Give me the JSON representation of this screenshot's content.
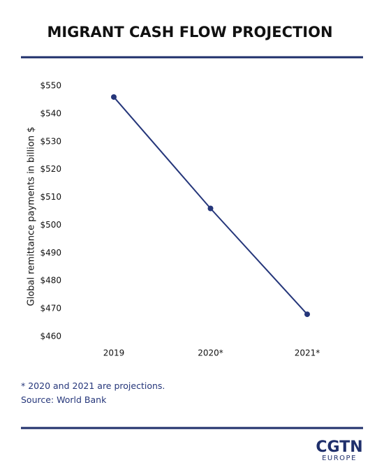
{
  "chart_data": {
    "type": "line",
    "title": "MIGRANT CASH FLOW PROJECTION",
    "y_label": "Global remittance payments in billion $",
    "categories": [
      "2019",
      "2020*",
      "2021*"
    ],
    "series": [
      {
        "name": "Global remittance payments",
        "color": "#25367a",
        "values": [
          546,
          506,
          468
        ]
      }
    ],
    "ylim": [
      460,
      550
    ],
    "yticks": [
      {
        "value": 460,
        "label": "$460"
      },
      {
        "value": 470,
        "label": "$470"
      },
      {
        "value": 480,
        "label": "$480"
      },
      {
        "value": 490,
        "label": "$490"
      },
      {
        "value": 500,
        "label": "$500"
      },
      {
        "value": 510,
        "label": "$510"
      },
      {
        "value": 520,
        "label": "$520"
      },
      {
        "value": 530,
        "label": "$530"
      },
      {
        "value": 540,
        "label": "$540"
      },
      {
        "value": 550,
        "label": "$550"
      }
    ],
    "grid": false,
    "note": "* 2020 and 2021 are projections.",
    "source": "Source: World Bank"
  },
  "logo": {
    "name": "CGTN",
    "region": "EUROPE"
  }
}
